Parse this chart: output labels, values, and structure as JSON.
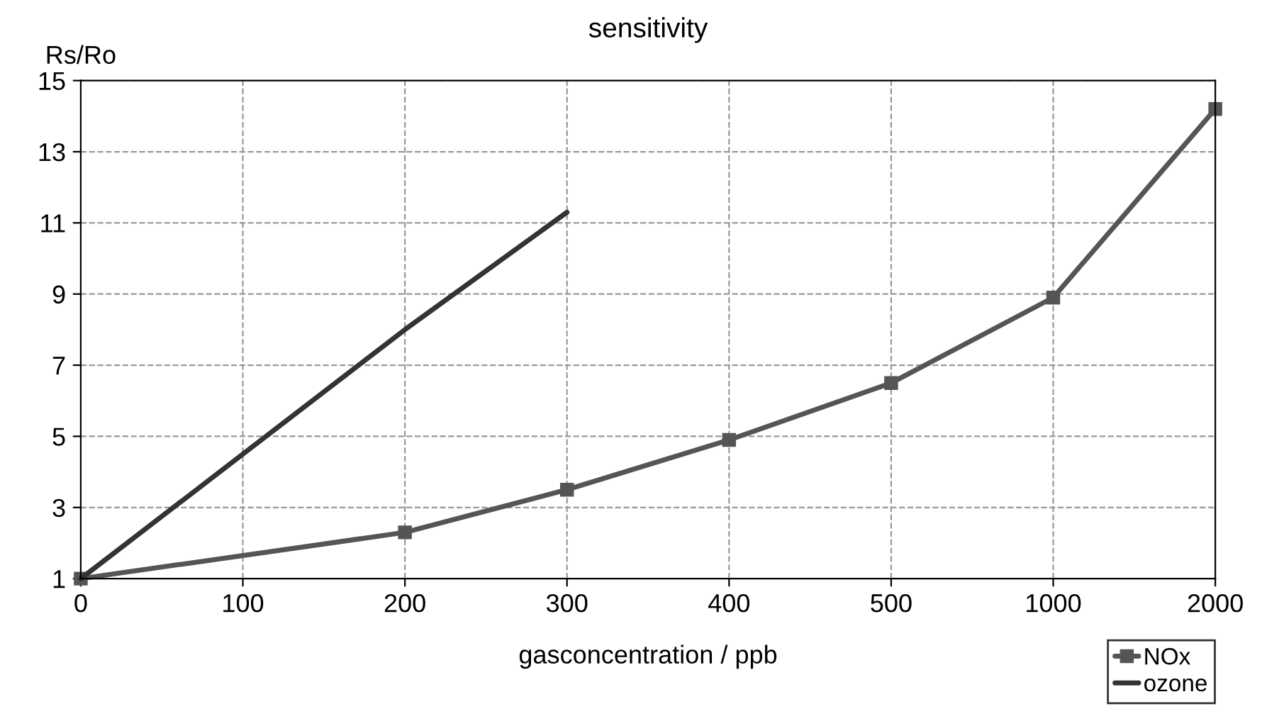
{
  "chart_data": {
    "type": "line",
    "title": "sensitivity",
    "xlabel": "gasconcentration / ppb",
    "ylabel": "Rs/Ro",
    "categories": [
      "0",
      "100",
      "200",
      "300",
      "400",
      "500",
      "1000",
      "2000"
    ],
    "series": [
      {
        "name": "NOx",
        "color": "#555555",
        "marker": "square",
        "values": [
          1,
          null,
          2.3,
          3.5,
          4.9,
          6.5,
          8.9,
          14.2
        ]
      },
      {
        "name": "ozone",
        "color": "#333333",
        "marker": "none",
        "values": [
          1,
          4.5,
          8,
          11.3,
          null,
          null,
          null,
          null
        ]
      }
    ],
    "ylim": [
      1,
      15
    ],
    "yticks": [
      1,
      3,
      5,
      7,
      9,
      11,
      13,
      15
    ],
    "grid": true,
    "legend": "bottom right",
    "line_style": "solid"
  }
}
